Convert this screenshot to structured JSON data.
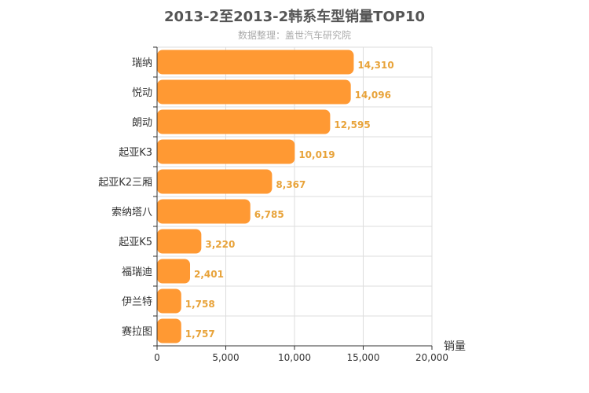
{
  "chart_data": {
    "type": "bar",
    "orientation": "horizontal",
    "title": "2013-2至2013-2韩系车型销量TOP10",
    "subtitle": "数据整理：盖世汽车研究院",
    "categories": [
      "瑞纳",
      "悦动",
      "朗动",
      "起亚K3",
      "起亚K2三厢",
      "索纳塔八",
      "起亚K5",
      "福瑞迪",
      "伊兰特",
      "赛拉图"
    ],
    "values": [
      14310,
      14096,
      12595,
      10019,
      8367,
      6785,
      3220,
      2401,
      1758,
      1757
    ],
    "value_labels": [
      "14,310",
      "14,096",
      "12,595",
      "10,019",
      "8,367",
      "6,785",
      "3,220",
      "2,401",
      "1,758",
      "1,757"
    ],
    "xlabel": "销量",
    "xlim": [
      0,
      20000
    ],
    "xticks": [
      0,
      5000,
      10000,
      15000,
      20000
    ],
    "xtick_labels": [
      "0",
      "5,000",
      "10,000",
      "15,000",
      "20,000"
    ],
    "grid": true,
    "bar_color": "#FF9933",
    "label_color": "#E8A33A"
  }
}
